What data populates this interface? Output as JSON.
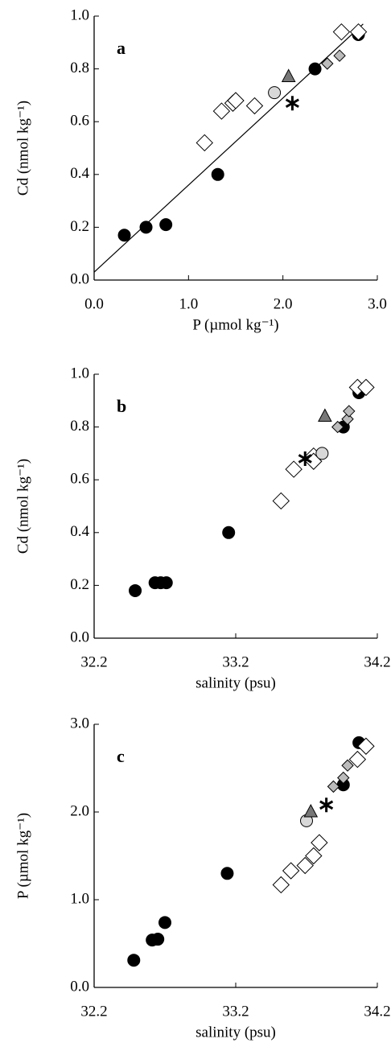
{
  "chart_data": [
    {
      "type": "scatter",
      "title": "a",
      "xlabel": "P (µmol kg⁻¹)",
      "ylabel": "Cd (nmol kg⁻¹)",
      "xlim": [
        0,
        3
      ],
      "ylim": [
        0,
        1
      ],
      "xticks": [
        {
          "value": 0,
          "label": "0.0"
        },
        {
          "value": 1,
          "label": "1.0"
        },
        {
          "value": 2,
          "label": "2.0"
        },
        {
          "value": 3,
          "label": "3.0"
        }
      ],
      "yticks": [
        {
          "value": 0,
          "label": "0.0"
        },
        {
          "value": 0.2,
          "label": "0.2"
        },
        {
          "value": 0.4,
          "label": "0.4"
        },
        {
          "value": 0.6,
          "label": "0.6"
        },
        {
          "value": 0.8,
          "label": "0.8"
        },
        {
          "value": 1,
          "label": "1.0"
        }
      ],
      "fit_line": {
        "x": [
          0,
          2.85
        ],
        "y": [
          0.03,
          0.97
        ]
      },
      "series": [
        {
          "marker": "circle",
          "color": "#000000",
          "x": [
            0.32,
            0.55,
            0.76,
            1.31,
            2.34,
            2.8
          ],
          "values": [
            0.17,
            0.2,
            0.21,
            0.4,
            0.8,
            0.93
          ]
        },
        {
          "marker": "diamond",
          "color": "#ffffff",
          "x": [
            1.17,
            1.35,
            1.47,
            1.5,
            1.7,
            2.62,
            2.8
          ],
          "values": [
            0.52,
            0.64,
            0.67,
            0.68,
            0.66,
            0.94,
            0.94
          ]
        },
        {
          "marker": "small-diamond",
          "color": "#bbbbbb",
          "x": [
            2.47,
            2.6
          ],
          "values": [
            0.82,
            0.85
          ]
        },
        {
          "marker": "circle",
          "color": "#d8d8d8",
          "x": [
            1.91
          ],
          "values": [
            0.71
          ]
        },
        {
          "marker": "triangle",
          "color": "#777777",
          "x": [
            2.06
          ],
          "values": [
            0.77
          ]
        },
        {
          "marker": "star",
          "color": "#000000",
          "x": [
            2.1
          ],
          "values": [
            0.67
          ]
        }
      ]
    },
    {
      "type": "scatter",
      "title": "b",
      "xlabel": "salinity (psu)",
      "ylabel": "Cd (nmol kg⁻¹)",
      "xlim": [
        32.2,
        34.2
      ],
      "ylim": [
        0,
        1
      ],
      "xticks": [
        32.2,
        33.2,
        34.2
      ],
      "yticks": [
        {
          "value": 0,
          "label": "0.0"
        },
        {
          "value": 0.2,
          "label": "0.2"
        },
        {
          "value": 0.4,
          "label": "0.4"
        },
        {
          "value": 0.6,
          "label": "0.6"
        },
        {
          "value": 0.8,
          "label": "0.8"
        },
        {
          "value": 1,
          "label": "1.0"
        }
      ],
      "series": [
        {
          "marker": "circle",
          "color": "#000000",
          "x": [
            32.49,
            32.63,
            32.67,
            32.71,
            33.15,
            33.96,
            34.07
          ],
          "values": [
            0.18,
            0.21,
            0.21,
            0.21,
            0.4,
            0.8,
            0.93
          ]
        },
        {
          "marker": "diamond",
          "color": "#ffffff",
          "x": [
            33.52,
            33.61,
            33.75,
            33.75,
            34.06,
            34.12
          ],
          "values": [
            0.52,
            0.64,
            0.69,
            0.67,
            0.95,
            0.95
          ]
        },
        {
          "marker": "small-diamond",
          "color": "#bbbbbb",
          "x": [
            33.92,
            33.99,
            34.0
          ],
          "values": [
            0.8,
            0.83,
            0.86
          ]
        },
        {
          "marker": "circle",
          "color": "#d8d8d8",
          "x": [
            33.81
          ],
          "values": [
            0.7
          ]
        },
        {
          "marker": "triangle",
          "color": "#777777",
          "x": [
            33.83
          ],
          "values": [
            0.84
          ]
        },
        {
          "marker": "star",
          "color": "#000000",
          "x": [
            33.69
          ],
          "values": [
            0.68
          ]
        }
      ]
    },
    {
      "type": "scatter",
      "title": "c",
      "xlabel": "salinity (psu)",
      "ylabel": "P (µmol kg⁻¹)",
      "xlim": [
        32.2,
        34.2
      ],
      "ylim": [
        0,
        3
      ],
      "xticks": [
        32.2,
        33.2,
        34.2
      ],
      "yticks": [
        {
          "value": 0,
          "label": "0.0"
        },
        {
          "value": 1,
          "label": "1.0"
        },
        {
          "value": 2,
          "label": "2.0"
        },
        {
          "value": 3,
          "label": "3.0"
        }
      ],
      "series": [
        {
          "marker": "circle",
          "color": "#000000",
          "x": [
            32.48,
            32.61,
            32.65,
            32.7,
            33.14,
            33.96,
            34.07
          ],
          "values": [
            0.31,
            0.54,
            0.55,
            0.74,
            1.3,
            2.31,
            2.79
          ]
        },
        {
          "marker": "diamond",
          "color": "#ffffff",
          "x": [
            33.52,
            33.59,
            33.69,
            33.75,
            33.79,
            34.06,
            34.12
          ],
          "values": [
            1.17,
            1.33,
            1.39,
            1.5,
            1.65,
            2.6,
            2.75
          ]
        },
        {
          "marker": "small-diamond",
          "color": "#bbbbbb",
          "x": [
            33.89,
            33.96,
            33.99
          ],
          "values": [
            2.29,
            2.39,
            2.53
          ]
        },
        {
          "marker": "circle",
          "color": "#d8d8d8",
          "x": [
            33.7
          ],
          "values": [
            1.9
          ]
        },
        {
          "marker": "triangle",
          "color": "#777777",
          "x": [
            33.73
          ],
          "values": [
            2.0
          ]
        },
        {
          "marker": "star",
          "color": "#000000",
          "x": [
            33.84
          ],
          "values": [
            2.08
          ]
        }
      ]
    }
  ]
}
